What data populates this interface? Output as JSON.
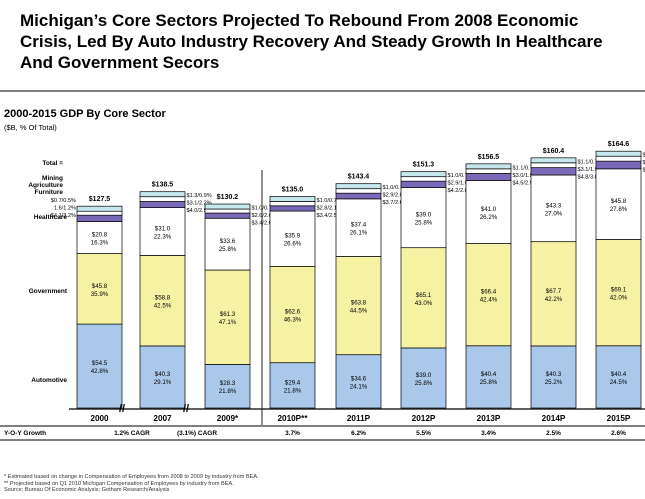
{
  "header": {
    "title": "Michigan’s Core Sectors Projected To Rebound From 2008 Economic Crisis, Led By Auto Industry Recovery And Steady Growth In Healthcare And Government Secors"
  },
  "footnotes": [
    "*   Estimated based on change in Compensation of Employees from 2008 to 2009 by industry from BEA.",
    "**  Projected based on Q1 2010 Michigan Compensation of Employees by industry from BEA.",
    "Source: Bureau Of Economic Analysis; Gotham Research/Analysis"
  ],
  "colors": {
    "automotive": "#a9c8ea",
    "government": "#f5f2a3",
    "healthcare": "#ffffff",
    "furniture": "#7a69b6",
    "agriculture": "#ffffff",
    "mining": "#c7e7ee",
    "outline": "#000000",
    "rule": "#222222"
  },
  "chart_data": {
    "type": "bar",
    "stacked": true,
    "title": "2000-2015 GDP By Core Sector",
    "subtitle": "($B, % Of Total)",
    "total_label": "Total =",
    "growth_label": "Y-O-Y Growth",
    "side_labels": {
      "mining": "Mining",
      "agriculture": "Agriculture",
      "furniture": "Furniture",
      "healthcare": "Healthcare",
      "government": "Government",
      "automotive": "Automotive"
    },
    "categories": [
      "2000",
      "2007",
      "2009*",
      "2010P**",
      "2011P",
      "2012P",
      "2013P",
      "2014P",
      "2015P"
    ],
    "axis_breaks": [
      "//",
      "//"
    ],
    "growth": [
      "",
      "1.2% CAGR",
      "(3.1%) CAGR",
      "3.7%",
      "6.2%",
      "5.5%",
      "3.4%",
      "2.5%",
      "2.6%"
    ],
    "totals": [
      "$127.5",
      "$138.5",
      "$130.2",
      "$135.0",
      "$143.4",
      "$151.3",
      "$156.5",
      "$160.4",
      "$164.6"
    ],
    "series": [
      {
        "name": "Automotive",
        "values": [
          54.5,
          40.3,
          28.3,
          29.4,
          34.6,
          39.0,
          40.4,
          40.3,
          40.4
        ],
        "labels": [
          "$54.5\n42.8%",
          "$40.3\n29.1%",
          "$28.3\n21.8%",
          "$29.4\n21.8%",
          "$34.6\n24.1%",
          "$39.0\n25.8%",
          "$40.4\n25.8%",
          "$40.3\n25.2%",
          "$40.4\n24.5%"
        ]
      },
      {
        "name": "Government",
        "values": [
          45.8,
          58.8,
          61.3,
          62.6,
          63.8,
          65.1,
          66.4,
          67.7,
          69.1
        ],
        "labels": [
          "$45.8\n35.9%",
          "$58.8\n42.5%",
          "$61.3\n47.1%",
          "$62.6\n46.3%",
          "$63.8\n44.5%",
          "$65.1\n43.0%",
          "$66.4\n42.4%",
          "$67.7\n42.2%",
          "$69.1\n42.0%"
        ]
      },
      {
        "name": "Healthcare",
        "values": [
          20.8,
          31.0,
          33.6,
          35.9,
          37.4,
          39.0,
          41.0,
          43.3,
          45.8
        ],
        "labels": [
          "$20.8\n16.3%",
          "$31.0\n22.3%",
          "$33.6\n25.8%",
          "$35.9\n26.6%",
          "$37.4\n26.1%",
          "$39.0\n25.8%",
          "$41.0\n26.2%",
          "$43.3\n27.0%",
          "$45.8\n27.8%"
        ]
      },
      {
        "name": "Furniture",
        "values": [
          4.1,
          4.0,
          3.4,
          3.4,
          3.7,
          4.2,
          4.5,
          4.8,
          5.0
        ],
        "labels": [
          "$4.1/3.2%",
          "$4.0/2.9%",
          "$3.4/2.6%",
          "$3.4/2.5%",
          "$3.7/2.6%",
          "$4.2/2.8%",
          "$4.5/2.9%",
          "$4.8/3.0%",
          "$5.0/3.1%"
        ]
      },
      {
        "name": "Agriculture",
        "values": [
          1.6,
          3.1,
          2.6,
          2.8,
          2.9,
          2.9,
          3.0,
          3.1,
          3.2
        ],
        "labels": [
          "1.6/1.2%",
          "$3.1/2.2%",
          "$2.6/2.0%",
          "$2.8/2.1%",
          "$2.9/2.0%",
          "$2.9/1.9%",
          "$3.0/1.9%",
          "$3.1/1.9%",
          "$3.2/1.9%"
        ]
      },
      {
        "name": "Mining",
        "values": [
          0.7,
          1.3,
          1.0,
          1.0,
          1.0,
          1.0,
          1.1,
          1.1,
          1.1
        ],
        "labels": [
          "$0.7/0.5%",
          "$1.3/0.9%",
          "$1.0/0.7%",
          "$1.0/0.7%",
          "$1.0/0.7%",
          "$1.0/0.7%",
          "$1.1/0.7%",
          "$1.1/0.7%",
          "$1.1/0.7%"
        ]
      }
    ]
  }
}
